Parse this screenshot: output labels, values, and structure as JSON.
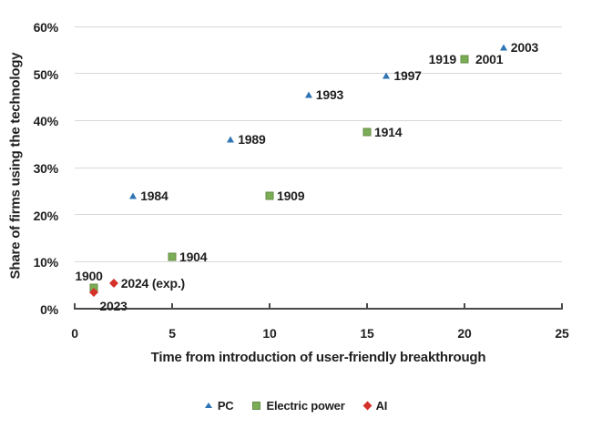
{
  "chart_data": {
    "type": "scatter",
    "xlabel": "Time from introduction of user-friendly breakthrough",
    "ylabel": "Share of firms using the technology",
    "xlim": [
      0,
      25
    ],
    "ylim": [
      0,
      60
    ],
    "x_ticks": [
      "0",
      "5",
      "10",
      "15",
      "20",
      "25"
    ],
    "y_ticks": [
      "0%",
      "10%",
      "20%",
      "30%",
      "40%",
      "50%",
      "60%"
    ],
    "grid": "horizontal",
    "legend_position": "bottom-center",
    "series": [
      {
        "name": "PC",
        "marker": "triangle",
        "color": "#2E74B5",
        "points": [
          {
            "x": 3,
            "y": 24,
            "label": "1984",
            "label_pos": "right"
          },
          {
            "x": 8,
            "y": 36,
            "label": "1989",
            "label_pos": "right"
          },
          {
            "x": 12,
            "y": 45.5,
            "label": "1993",
            "label_pos": "right"
          },
          {
            "x": 16,
            "y": 49.5,
            "label": "1997",
            "label_pos": "right"
          },
          {
            "x": 20,
            "y": 53,
            "label": "2001",
            "label_pos": "right-far"
          },
          {
            "x": 22,
            "y": 55.5,
            "label": "2003",
            "label_pos": "right"
          }
        ]
      },
      {
        "name": "Electric power",
        "marker": "square",
        "color": "#7BAD55",
        "points": [
          {
            "x": 1,
            "y": 4.5,
            "label": "1900",
            "label_pos": "above-left"
          },
          {
            "x": 5,
            "y": 11,
            "label": "1904",
            "label_pos": "right"
          },
          {
            "x": 10,
            "y": 24,
            "label": "1909",
            "label_pos": "right"
          },
          {
            "x": 15,
            "y": 37.5,
            "label": "1914",
            "label_pos": "right"
          },
          {
            "x": 20,
            "y": 53,
            "label": "1919",
            "label_pos": "left"
          }
        ]
      },
      {
        "name": "AI",
        "marker": "diamond",
        "color": "#D4312B",
        "points": [
          {
            "x": 1,
            "y": 3.5,
            "label": "2023",
            "label_pos": "below-right"
          },
          {
            "x": 2,
            "y": 5.5,
            "label": "2024 (exp.)",
            "label_pos": "right"
          }
        ]
      }
    ]
  }
}
